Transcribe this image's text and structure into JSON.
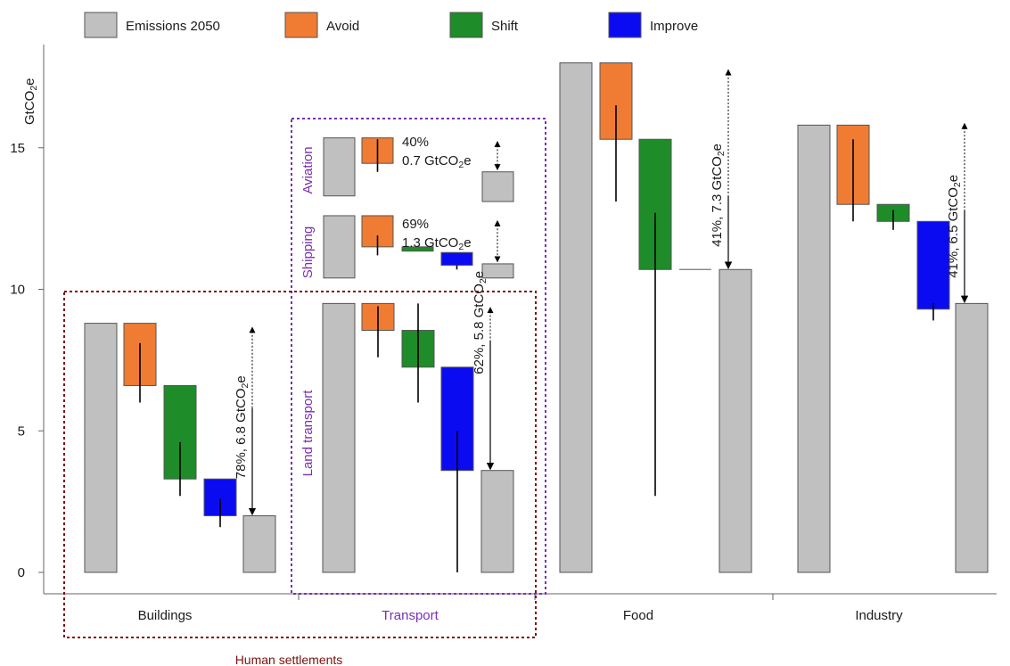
{
  "chart_data": {
    "type": "bar",
    "subtype": "waterfall",
    "ylabel": "GtCO2e",
    "ylabel_sub": "2",
    "ylabel_base": "GtCO",
    "ylabel_tail": "e",
    "ylim": [
      0,
      18
    ],
    "yticks": [
      0,
      5,
      10,
      15
    ],
    "grid": false,
    "legend": {
      "placement": "top",
      "entries": [
        {
          "label": "Emissions 2050",
          "color": "#c0c0c0"
        },
        {
          "label": "Avoid",
          "color": "#f07c34"
        },
        {
          "label": "Shift",
          "color": "#1e8c28"
        },
        {
          "label": "Improve",
          "color": "#0b0bf2"
        }
      ]
    },
    "categories": [
      "Buildings",
      "Transport",
      "Food",
      "Industry"
    ],
    "group_label": "Human settlements",
    "transport_subsectors": [
      "Aviation",
      "Shipping",
      "Land transport"
    ],
    "colors": {
      "emissions": "#c0c0c0",
      "avoid": "#f07c34",
      "shift": "#1e8c28",
      "improve": "#0b0bf2",
      "transport_box": "#7b2fb5",
      "settlements_box": "#7a1010",
      "transport_label": "#7b2fb5",
      "settlements_label": "#7a1010"
    },
    "sectors": [
      {
        "name": "Buildings",
        "bars": [
          {
            "kind": "emissions",
            "low": 0,
            "high": 8.8
          },
          {
            "kind": "avoid",
            "low": 6.6,
            "high": 8.8,
            "err": [
              6.0,
              8.1
            ]
          },
          {
            "kind": "shift",
            "low": 3.3,
            "high": 6.6,
            "err": [
              2.7,
              4.6
            ]
          },
          {
            "kind": "improve",
            "low": 2.0,
            "high": 3.3,
            "err": [
              1.6,
              2.6
            ]
          },
          {
            "kind": "emissions",
            "low": 0,
            "high": 2.0
          }
        ],
        "reduction": {
          "from": 8.7,
          "to": 2.0,
          "split": 5.8
        },
        "annotation": "78%, 6.8 GtCO2e",
        "annotation_base": "78%, 6.8 GtCO",
        "annotation_sub": "2",
        "annotation_tail": "e"
      },
      {
        "name": "Land transport",
        "bars": [
          {
            "kind": "emissions",
            "low": 0,
            "high": 9.5
          },
          {
            "kind": "avoid",
            "low": 8.55,
            "high": 9.5,
            "err": [
              7.6,
              9.4
            ]
          },
          {
            "kind": "shift",
            "low": 7.25,
            "high": 8.55,
            "err": [
              6.0,
              9.5
            ]
          },
          {
            "kind": "improve",
            "low": 3.6,
            "high": 7.25,
            "err": [
              0.0,
              5.0
            ]
          },
          {
            "kind": "emissions",
            "low": 0,
            "high": 3.6
          }
        ],
        "reduction": {
          "from": 9.4,
          "to": 3.6,
          "split": 8.2
        },
        "annotation": "62%, 5.8 GtCO2e",
        "annotation_base": "62%, 5.8 GtCO",
        "annotation_sub": "2",
        "annotation_tail": "e"
      },
      {
        "name": "Food",
        "bars": [
          {
            "kind": "emissions",
            "low": 0,
            "high": 18.0
          },
          {
            "kind": "avoid",
            "low": 15.3,
            "high": 18.0,
            "err": [
              13.1,
              16.5
            ]
          },
          {
            "kind": "shift",
            "low": 10.7,
            "high": 15.3,
            "err": [
              2.7,
              12.7
            ]
          },
          {
            "kind": "improve",
            "low": 10.7,
            "high": 10.7
          },
          {
            "kind": "emissions",
            "low": 0,
            "high": 10.7
          }
        ],
        "reduction": {
          "from": 17.8,
          "to": 10.7,
          "split": 13.3
        },
        "annotation": "41%, 7.3 GtCO2e",
        "annotation_base": "41%, 7.3 GtCO",
        "annotation_sub": "2",
        "annotation_tail": "e"
      },
      {
        "name": "Industry",
        "bars": [
          {
            "kind": "emissions",
            "low": 0,
            "high": 15.8
          },
          {
            "kind": "avoid",
            "low": 13.0,
            "high": 15.8,
            "err": [
              12.4,
              15.3
            ]
          },
          {
            "kind": "shift",
            "low": 12.4,
            "high": 13.0,
            "err": [
              12.1,
              12.8
            ]
          },
          {
            "kind": "improve",
            "low": 9.3,
            "high": 12.4,
            "err": [
              8.9,
              9.5
            ]
          },
          {
            "kind": "emissions",
            "low": 0,
            "high": 9.5
          }
        ],
        "reduction": {
          "from": 15.9,
          "to": 9.5,
          "split": 12.8
        },
        "annotation": "41%, 6.5 GtCO2e",
        "annotation_base": "41%, 6.5 GtCO",
        "annotation_sub": "2",
        "annotation_tail": "e"
      }
    ],
    "insets": [
      {
        "name": "Aviation",
        "bars": [
          {
            "kind": "emissions",
            "low": 13.3,
            "high": 15.35
          },
          {
            "kind": "avoid",
            "low": 14.45,
            "high": 15.35,
            "err": [
              14.15,
              15.3
            ]
          },
          {
            "kind": "emissions",
            "low": 13.1,
            "high": 14.15
          }
        ],
        "reduction": {
          "from": 15.2,
          "to": 14.15
        },
        "percent": "40%",
        "amount": "0.7 GtCO2e",
        "amount_base": "0.7 GtCO",
        "amount_sub": "2",
        "amount_tail": "e"
      },
      {
        "name": "Shipping",
        "bars": [
          {
            "kind": "emissions",
            "low": 10.4,
            "high": 12.6
          },
          {
            "kind": "avoid",
            "low": 11.5,
            "high": 12.6,
            "err": [
              11.2,
              11.9
            ]
          },
          {
            "kind": "shift",
            "low": 11.35,
            "high": 11.5
          },
          {
            "kind": "improve",
            "low": 10.85,
            "high": 11.3,
            "err": [
              10.7,
              10.85
            ]
          },
          {
            "kind": "emissions",
            "low": 10.4,
            "high": 10.9
          }
        ],
        "reduction": {
          "from": 12.4,
          "to": 10.9
        },
        "percent": "69%",
        "amount": "1.3 GtCO2e",
        "amount_base": "1.3 GtCO",
        "amount_sub": "2",
        "amount_tail": "e"
      }
    ]
  }
}
